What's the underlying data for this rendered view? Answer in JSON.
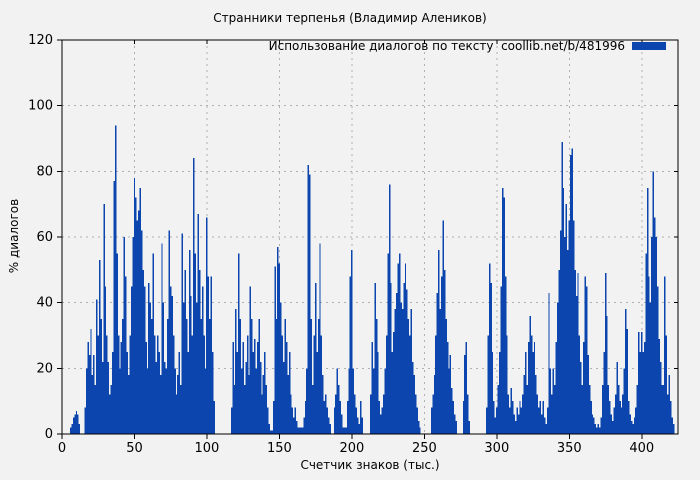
{
  "figure": {
    "background_color": "#f2f2f2"
  },
  "chart_data": {
    "type": "bar",
    "title": "Странники терпенья (Владимир Алеников)",
    "xlabel": "Счетчик знаков (тыс.)",
    "ylabel": "% диалогов",
    "legend": {
      "label": "Использование диалогов по тексту  coollib.net/b/481996",
      "position": "top-right",
      "swatch_color": "#0b45ad"
    },
    "xlim": [
      0,
      425
    ],
    "ylim": [
      0,
      120
    ],
    "xticks": [
      0,
      50,
      100,
      150,
      200,
      250,
      300,
      350,
      400
    ],
    "yticks": [
      0,
      20,
      40,
      60,
      80,
      100,
      120
    ],
    "grid": true,
    "bar_color": "#0b45ad",
    "grid_color": "#b0b0b0",
    "border_color": "#000000",
    "x_start": 0,
    "x_step": 1,
    "values": [
      0,
      0,
      0,
      0,
      0,
      0,
      2,
      3,
      5,
      6,
      7,
      6,
      3,
      0,
      0,
      0,
      8,
      20,
      28,
      24,
      32,
      18,
      24,
      15,
      41,
      30,
      53,
      35,
      22,
      70,
      45,
      30,
      22,
      12,
      15,
      25,
      77,
      94,
      55,
      30,
      20,
      28,
      35,
      60,
      48,
      25,
      18,
      30,
      45,
      60,
      78,
      72,
      65,
      68,
      75,
      62,
      50,
      45,
      28,
      20,
      46,
      40,
      35,
      55,
      30,
      22,
      30,
      25,
      18,
      58,
      40,
      22,
      20,
      35,
      62,
      45,
      42,
      30,
      20,
      12,
      18,
      25,
      15,
      61,
      40,
      50,
      35,
      25,
      56,
      42,
      30,
      84,
      55,
      40,
      67,
      50,
      35,
      45,
      30,
      20,
      66,
      48,
      35,
      48,
      25,
      10,
      0,
      0,
      0,
      0,
      0,
      0,
      0,
      0,
      0,
      0,
      0,
      8,
      28,
      15,
      38,
      25,
      55,
      35,
      20,
      28,
      15,
      22,
      30,
      18,
      45,
      35,
      25,
      29,
      20,
      28,
      35,
      22,
      12,
      18,
      25,
      15,
      8,
      3,
      1,
      1,
      10,
      51,
      35,
      57,
      52,
      40,
      30,
      22,
      35,
      28,
      18,
      25,
      12,
      8,
      5,
      8,
      4,
      2,
      2,
      2,
      2,
      5,
      10,
      20,
      82,
      79,
      35,
      15,
      30,
      46,
      25,
      35,
      58,
      30,
      18,
      10,
      12,
      8,
      5,
      3,
      0,
      0,
      8,
      12,
      20,
      15,
      10,
      6,
      2,
      2,
      2,
      10,
      20,
      48,
      56,
      20,
      12,
      8,
      5,
      3,
      10,
      5,
      0,
      0,
      0,
      0,
      0,
      12,
      28,
      20,
      46,
      35,
      25,
      10,
      6,
      8,
      12,
      20,
      30,
      55,
      76,
      46,
      25,
      31,
      38,
      43,
      52,
      55,
      40,
      38,
      46,
      52,
      44,
      35,
      30,
      38,
      22,
      18,
      12,
      8,
      4,
      2,
      0,
      0,
      0,
      0,
      0,
      0,
      0,
      8,
      12,
      18,
      30,
      43,
      56,
      38,
      48,
      65,
      50,
      35,
      28,
      20,
      24,
      14,
      10,
      6,
      4,
      0,
      0,
      0,
      0,
      10,
      24,
      28,
      12,
      4,
      0,
      0,
      0,
      0,
      0,
      0,
      0,
      0,
      0,
      0,
      0,
      8,
      30,
      52,
      46,
      25,
      10,
      5,
      8,
      15,
      25,
      45,
      75,
      72,
      48,
      30,
      12,
      8,
      14,
      10,
      6,
      4,
      8,
      6,
      10,
      8,
      12,
      18,
      25,
      15,
      28,
      36,
      30,
      25,
      28,
      18,
      12,
      8,
      10,
      6,
      10,
      5,
      3,
      8,
      43,
      20,
      12,
      20,
      15,
      28,
      40,
      50,
      62,
      89,
      75,
      60,
      70,
      56,
      65,
      85,
      87,
      65,
      50,
      42,
      49,
      30,
      22,
      15,
      28,
      48,
      45,
      24,
      15,
      10,
      6,
      5,
      3,
      2,
      3,
      2,
      5,
      15,
      25,
      49,
      36,
      15,
      10,
      6,
      4,
      8,
      12,
      22,
      15,
      10,
      8,
      12,
      20,
      38,
      32,
      10,
      6,
      4,
      3,
      5,
      8,
      15,
      31,
      25,
      31,
      25,
      28,
      55,
      75,
      48,
      40,
      60,
      80,
      66,
      60,
      45,
      29,
      22,
      15,
      15,
      48,
      30,
      12,
      18,
      10,
      5,
      3,
      0,
      0
    ]
  }
}
